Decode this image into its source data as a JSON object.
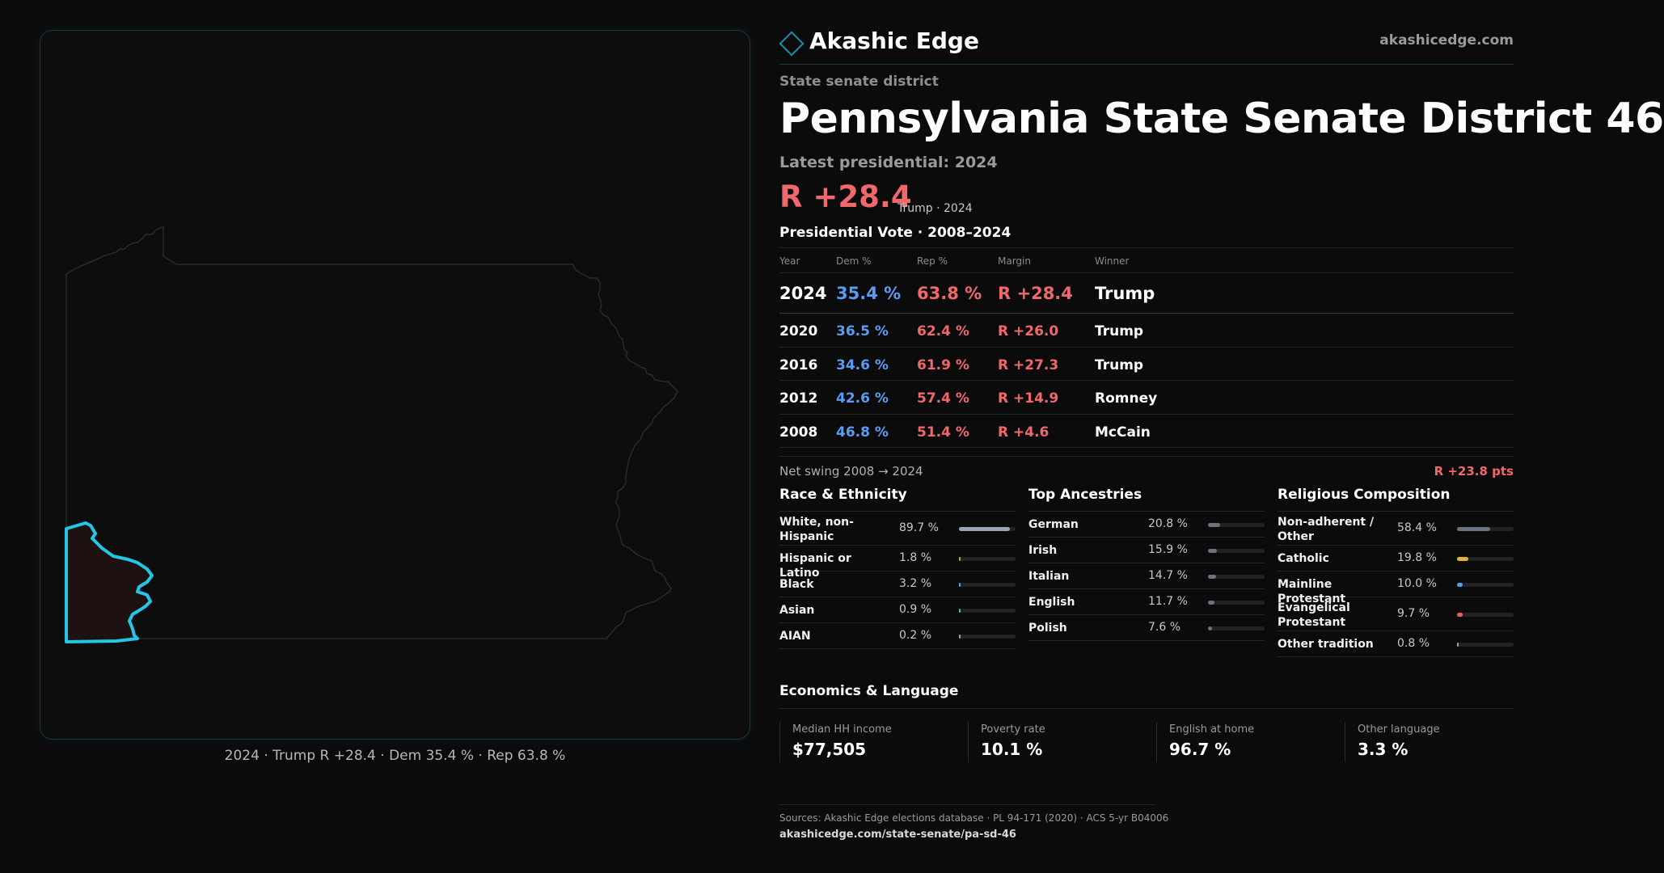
{
  "brand": {
    "name": "Akashic Edge",
    "url": "akashicedge.com"
  },
  "map": {
    "caption": "2024 · Trump R +28.4 · Dem 35.4 % · Rep 63.8 %",
    "highlight_color": "#22c7e6"
  },
  "header": {
    "kicker": "State senate district",
    "title": "Pennsylvania State Senate District 46",
    "latest": "Latest presidential: 2024",
    "margin": "R +28.4",
    "margin_note": "Trump · 2024"
  },
  "presidential": {
    "title": "Presidential Vote · 2008–2024",
    "columns": [
      "Year",
      "Dem %",
      "Rep %",
      "Margin",
      "Winner"
    ],
    "rows": [
      {
        "year": "2024",
        "dem": "35.4 %",
        "rep": "63.8 %",
        "margin": "R +28.4",
        "winner": "Trump"
      },
      {
        "year": "2020",
        "dem": "36.5 %",
        "rep": "62.4 %",
        "margin": "R +26.0",
        "winner": "Trump"
      },
      {
        "year": "2016",
        "dem": "34.6 %",
        "rep": "61.9 %",
        "margin": "R +27.3",
        "winner": "Trump"
      },
      {
        "year": "2012",
        "dem": "42.6 %",
        "rep": "57.4 %",
        "margin": "R +14.9",
        "winner": "Romney"
      },
      {
        "year": "2008",
        "dem": "46.8 %",
        "rep": "51.4 %",
        "margin": "R +4.6",
        "winner": "McCain"
      }
    ],
    "swing_label": "Net swing 2008 → 2024",
    "swing_value": "R +23.8 pts"
  },
  "demographics": [
    {
      "title": "Race & Ethnicity",
      "rows": [
        {
          "label": "White, non-Hispanic",
          "value": "89.7 %",
          "pct": 89.7,
          "color": "#9aa4b4"
        },
        {
          "label": "Hispanic or Latino",
          "value": "1.8 %",
          "pct": 1.8,
          "color": "#c9a23a"
        },
        {
          "label": "Black",
          "value": "3.2 %",
          "pct": 3.2,
          "color": "#5a9cf2"
        },
        {
          "label": "Asian",
          "value": "0.9 %",
          "pct": 0.9,
          "color": "#4fbf7a"
        },
        {
          "label": "AIAN",
          "value": "0.2 %",
          "pct": 0.2,
          "color": "#9aa4b4"
        }
      ]
    },
    {
      "title": "Top Ancestries",
      "rows": [
        {
          "label": "German",
          "value": "20.8 %",
          "pct": 20.8,
          "color": "#6b7380"
        },
        {
          "label": "Irish",
          "value": "15.9 %",
          "pct": 15.9,
          "color": "#6b7380"
        },
        {
          "label": "Italian",
          "value": "14.7 %",
          "pct": 14.7,
          "color": "#6b7380"
        },
        {
          "label": "English",
          "value": "11.7 %",
          "pct": 11.7,
          "color": "#6b7380"
        },
        {
          "label": "Polish",
          "value": "7.6 %",
          "pct": 7.6,
          "color": "#6b7380"
        }
      ]
    },
    {
      "title": "Religious Composition",
      "rows": [
        {
          "label": "Non-adherent / Other",
          "value": "58.4 %",
          "pct": 58.4,
          "color": "#6b7380"
        },
        {
          "label": "Catholic",
          "value": "19.8 %",
          "pct": 19.8,
          "color": "#e3b23c"
        },
        {
          "label": "Mainline Protestant",
          "value": "10.0 %",
          "pct": 10.0,
          "color": "#5a9cf2"
        },
        {
          "label": "Evangelical Protestant",
          "value": "9.7 %",
          "pct": 9.7,
          "color": "#e8606a"
        },
        {
          "label": "Other tradition",
          "value": "0.8 %",
          "pct": 0.8,
          "color": "#9aa4b4"
        }
      ]
    }
  ],
  "economics": {
    "title": "Economics & Language",
    "cells": [
      {
        "label": "Median HH income",
        "value": "$77,505"
      },
      {
        "label": "Poverty rate",
        "value": "10.1 %"
      },
      {
        "label": "English at home",
        "value": "96.7 %"
      },
      {
        "label": "Other language",
        "value": "3.3 %"
      }
    ]
  },
  "footer": {
    "sources": "Sources: Akashic Edge elections database · PL 94-171 (2020) · ACS 5-yr B04006",
    "link": "akashicedge.com/state-senate/pa-sd-46"
  }
}
